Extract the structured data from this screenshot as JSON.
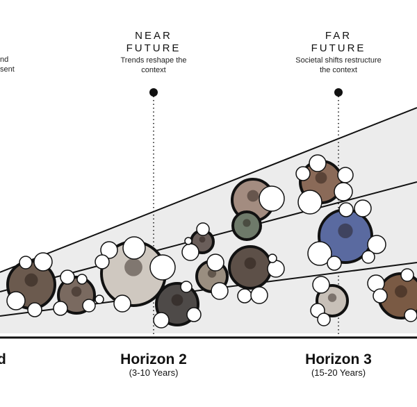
{
  "left_edge": {
    "title_fragment": "d",
    "text_line1": "nd",
    "text_line2": "sent"
  },
  "near_future": {
    "title_line1": "NEAR",
    "title_line2": "FUTURE",
    "desc_line1": "Trends reshape the",
    "desc_line2": "context"
  },
  "far_future": {
    "title_line1": "FAR",
    "title_line2": "FUTURE",
    "desc_line1": "Societal shifts restructure",
    "desc_line2": "the context"
  },
  "horizon2": {
    "label": "Horizon 2",
    "years": "(3-10 Years)"
  },
  "horizon3": {
    "label": "Horizon 3",
    "years": "(15-20 Years)"
  },
  "colors": {
    "cone_fill": "#ececec",
    "line": "#111111",
    "bubble_fill": "#ffffff"
  },
  "icons": [
    "photo-cluster"
  ]
}
